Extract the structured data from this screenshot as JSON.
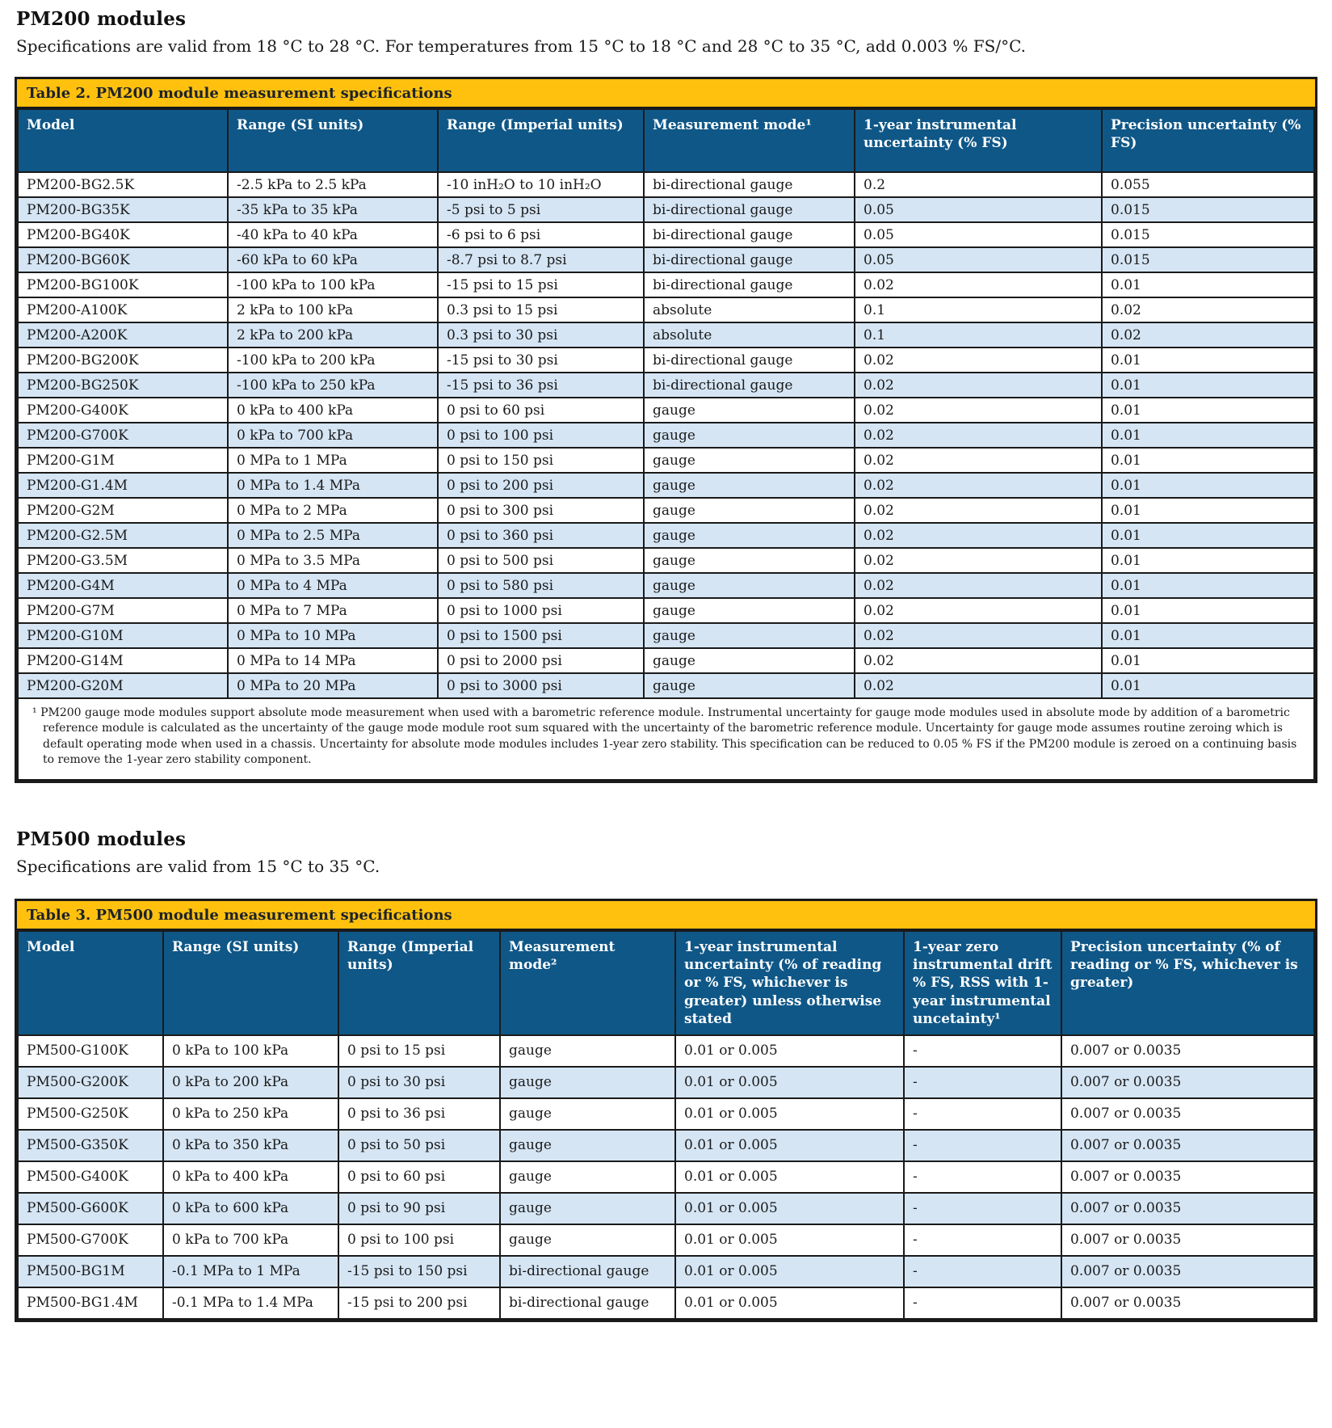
{
  "pm200": {
    "heading": "PM200 modules",
    "intro": "Specifications are valid from 18 °C to 28 °C. For temperatures from 15 °C to 18 °C and 28 °C to 35 °C, add 0.003 % FS/°C."
  },
  "pm500": {
    "heading": "PM500 modules",
    "intro": "Specifications are valid from 15 °C to 35 °C."
  },
  "table2": {
    "title": "Table 2. PM200 module measurement specifications",
    "columns": [
      "Model",
      "Range (SI units)",
      "Range (Imperial units)",
      "Measurement mode¹",
      "1-year instrumental uncertainty (% FS)",
      "Precision uncertainty (% FS)"
    ],
    "rows": [
      {
        "model": "PM200-BG2.5K",
        "range_si": "-2.5 kPa to 2.5 kPa",
        "range_imperial": "-10 inH₂O to 10 inH₂O",
        "mode": "bi-directional gauge",
        "uncertainty": "0.2",
        "precision": "0.055",
        "shaded": false
      },
      {
        "model": "PM200-BG35K",
        "range_si": "-35 kPa to 35 kPa",
        "range_imperial": "-5 psi to 5 psi",
        "mode": "bi-directional gauge",
        "uncertainty": "0.05",
        "precision": "0.015",
        "shaded": true
      },
      {
        "model": "PM200-BG40K",
        "range_si": "-40 kPa to 40 kPa",
        "range_imperial": "-6 psi to 6 psi",
        "mode": "bi-directional gauge",
        "uncertainty": "0.05",
        "precision": "0.015",
        "shaded": false
      },
      {
        "model": "PM200-BG60K",
        "range_si": "-60 kPa to 60 kPa",
        "range_imperial": "-8.7 psi to 8.7 psi",
        "mode": "bi-directional gauge",
        "uncertainty": "0.05",
        "precision": "0.015",
        "shaded": true
      },
      {
        "model": "PM200-BG100K",
        "range_si": "-100 kPa to 100 kPa",
        "range_imperial": "-15 psi to 15 psi",
        "mode": "bi-directional gauge",
        "uncertainty": "0.02",
        "precision": "0.01",
        "shaded": false
      },
      {
        "model": "PM200-A100K",
        "range_si": "2 kPa to 100 kPa",
        "range_imperial": "0.3 psi to 15 psi",
        "mode": "absolute",
        "uncertainty": "0.1",
        "precision": "0.02",
        "shaded": false
      },
      {
        "model": "PM200-A200K",
        "range_si": "2 kPa to 200 kPa",
        "range_imperial": "0.3 psi to 30 psi",
        "mode": "absolute",
        "uncertainty": "0.1",
        "precision": "0.02",
        "shaded": true
      },
      {
        "model": "PM200-BG200K",
        "range_si": "-100 kPa to 200 kPa",
        "range_imperial": "-15 psi to 30 psi",
        "mode": "bi-directional gauge",
        "uncertainty": "0.02",
        "precision": "0.01",
        "shaded": false
      },
      {
        "model": "PM200-BG250K",
        "range_si": "-100 kPa to 250 kPa",
        "range_imperial": "-15 psi to 36 psi",
        "mode": "bi-directional gauge",
        "uncertainty": "0.02",
        "precision": "0.01",
        "shaded": true
      },
      {
        "model": "PM200-G400K",
        "range_si": "0 kPa to 400 kPa",
        "range_imperial": "0 psi to 60 psi",
        "mode": "gauge",
        "uncertainty": "0.02",
        "precision": "0.01",
        "shaded": false
      },
      {
        "model": "PM200-G700K",
        "range_si": "0 kPa to 700 kPa",
        "range_imperial": "0 psi to 100 psi",
        "mode": "gauge",
        "uncertainty": "0.02",
        "precision": "0.01",
        "shaded": true
      },
      {
        "model": "PM200-G1M",
        "range_si": "0 MPa to 1 MPa",
        "range_imperial": "0 psi to 150 psi",
        "mode": "gauge",
        "uncertainty": "0.02",
        "precision": "0.01",
        "shaded": false
      },
      {
        "model": "PM200-G1.4M",
        "range_si": "0 MPa to 1.4 MPa",
        "range_imperial": "0 psi to 200 psi",
        "mode": "gauge",
        "uncertainty": "0.02",
        "precision": "0.01",
        "shaded": true
      },
      {
        "model": "PM200-G2M",
        "range_si": "0 MPa to 2 MPa",
        "range_imperial": "0 psi to 300 psi",
        "mode": "gauge",
        "uncertainty": "0.02",
        "precision": "0.01",
        "shaded": false
      },
      {
        "model": "PM200-G2.5M",
        "range_si": "0 MPa to 2.5 MPa",
        "range_imperial": "0 psi to 360 psi",
        "mode": "gauge",
        "uncertainty": "0.02",
        "precision": "0.01",
        "shaded": true
      },
      {
        "model": "PM200-G3.5M",
        "range_si": "0 MPa to 3.5 MPa",
        "range_imperial": "0 psi to 500 psi",
        "mode": "gauge",
        "uncertainty": "0.02",
        "precision": "0.01",
        "shaded": false
      },
      {
        "model": "PM200-G4M",
        "range_si": "0 MPa to 4 MPa",
        "range_imperial": "0 psi to 580 psi",
        "mode": "gauge",
        "uncertainty": "0.02",
        "precision": "0.01",
        "shaded": true
      },
      {
        "model": "PM200-G7M",
        "range_si": "0 MPa to 7 MPa",
        "range_imperial": "0 psi to 1000 psi",
        "mode": "gauge",
        "uncertainty": "0.02",
        "precision": "0.01",
        "shaded": false
      },
      {
        "model": "PM200-G10M",
        "range_si": "0 MPa to 10 MPa",
        "range_imperial": "0 psi to 1500 psi",
        "mode": "gauge",
        "uncertainty": "0.02",
        "precision": "0.01",
        "shaded": true
      },
      {
        "model": "PM200-G14M",
        "range_si": "0 MPa to 14 MPa",
        "range_imperial": "0 psi to 2000 psi",
        "mode": "gauge",
        "uncertainty": "0.02",
        "precision": "0.01",
        "shaded": false
      },
      {
        "model": "PM200-G20M",
        "range_si": "0 MPa to 20 MPa",
        "range_imperial": "0 psi to 3000 psi",
        "mode": "gauge",
        "uncertainty": "0.02",
        "precision": "0.01",
        "shaded": true
      }
    ],
    "footnote": "¹ PM200 gauge mode modules support absolute mode measurement when used with a barometric reference module. Instrumental uncertainty for gauge mode modules used in absolute mode by addition of a barometric reference module is calculated as the uncertainty of the gauge mode module root sum squared with the uncertainty of the barometric reference module. Uncertainty for gauge mode assumes routine zeroing which is default operating mode when used in a chassis. Uncertainty for absolute mode modules includes 1-year zero stability. This specification can be reduced to 0.05 % FS if the PM200 module is zeroed on a continuing basis to remove the 1-year zero stability component."
  },
  "table3": {
    "title": "Table 3. PM500 module measurement specifications",
    "columns": [
      "Model",
      "Range (SI units)",
      "Range (Imperial units)",
      "Measurement mode²",
      "1-year instrumental uncertainty (% of reading or % FS, whichever is greater) unless otherwise stated",
      "1-year zero instrumental drift % FS, RSS with 1-year instrumental uncetainty¹",
      "Precision uncertainty (% of reading or % FS, whichever is greater)"
    ],
    "rows": [
      {
        "model": "PM500-G100K",
        "range_si": "0 kPa to 100 kPa",
        "range_imperial": "0 psi to 15 psi",
        "mode": "gauge",
        "uncertainty": "0.01 or 0.005",
        "drift": "-",
        "precision": "0.007 or 0.0035",
        "shaded": false
      },
      {
        "model": "PM500-G200K",
        "range_si": "0 kPa to 200 kPa",
        "range_imperial": "0 psi to 30 psi",
        "mode": "gauge",
        "uncertainty": "0.01 or 0.005",
        "drift": "-",
        "precision": "0.007 or 0.0035",
        "shaded": true
      },
      {
        "model": "PM500-G250K",
        "range_si": "0 kPa to 250 kPa",
        "range_imperial": "0 psi to 36 psi",
        "mode": "gauge",
        "uncertainty": "0.01 or 0.005",
        "drift": "-",
        "precision": "0.007 or 0.0035",
        "shaded": false
      },
      {
        "model": "PM500-G350K",
        "range_si": "0 kPa to 350 kPa",
        "range_imperial": "0 psi to 50 psi",
        "mode": "gauge",
        "uncertainty": "0.01 or 0.005",
        "drift": "-",
        "precision": "0.007 or 0.0035",
        "shaded": true
      },
      {
        "model": "PM500-G400K",
        "range_si": "0 kPa to 400 kPa",
        "range_imperial": "0 psi to 60 psi",
        "mode": "gauge",
        "uncertainty": "0.01 or 0.005",
        "drift": "-",
        "precision": "0.007 or 0.0035",
        "shaded": false
      },
      {
        "model": "PM500-G600K",
        "range_si": "0 kPa to 600 kPa",
        "range_imperial": "0 psi to 90 psi",
        "mode": "gauge",
        "uncertainty": "0.01 or 0.005",
        "drift": "-",
        "precision": "0.007 or 0.0035",
        "shaded": true
      },
      {
        "model": "PM500-G700K",
        "range_si": "0 kPa to 700 kPa",
        "range_imperial": "0 psi to 100 psi",
        "mode": "gauge",
        "uncertainty": "0.01 or 0.005",
        "drift": "-",
        "precision": "0.007 or 0.0035",
        "shaded": false
      },
      {
        "model": "PM500-BG1M",
        "range_si": "-0.1 MPa to 1 MPa",
        "range_imperial": "-15 psi to 150 psi",
        "mode": "bi-directional gauge",
        "uncertainty": "0.01 or 0.005",
        "drift": "-",
        "precision": "0.007 or 0.0035",
        "shaded": true
      },
      {
        "model": "PM500-BG1.4M",
        "range_si": "-0.1 MPa to 1.4 MPa",
        "range_imperial": "-15 psi to 200 psi",
        "mode": "bi-directional gauge",
        "uncertainty": "0.01 or 0.005",
        "drift": "-",
        "precision": "0.007 or 0.0035",
        "shaded": false
      }
    ]
  }
}
